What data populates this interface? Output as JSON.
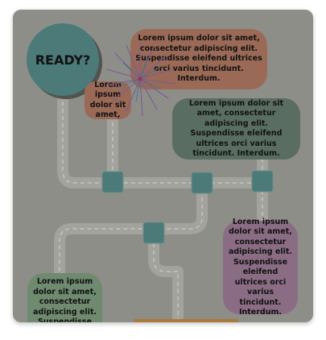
{
  "ready_label": "READY?",
  "lorem_long": "Lorem ipsum dolor sit amet, consectetur adipiscing elit. Suspendisse eleifend ultrices orci varius tincidunt. Interdum.",
  "lorem_short": "Lorem ipsum dolor sit amet,",
  "lorem_tall": "Lorem ipsum dolor sit amet, consectetur adipiscing elit. Suspendisse eleifend ultrices orci varius tincidunt. Interdum.",
  "lorem_bottom": "Lorem ipsum dolor sit amet, consectetur adipiscing elit. Suspendisse",
  "colors": {
    "card_bg": "#8e8e88",
    "road": "#a3a39e",
    "teal": "#4b7a78",
    "salmon": "#9a6a57",
    "dark_green": "#5a6d62",
    "purple": "#8a6d84",
    "light_green": "#6f8a6e",
    "firework": "#7b5a99"
  }
}
